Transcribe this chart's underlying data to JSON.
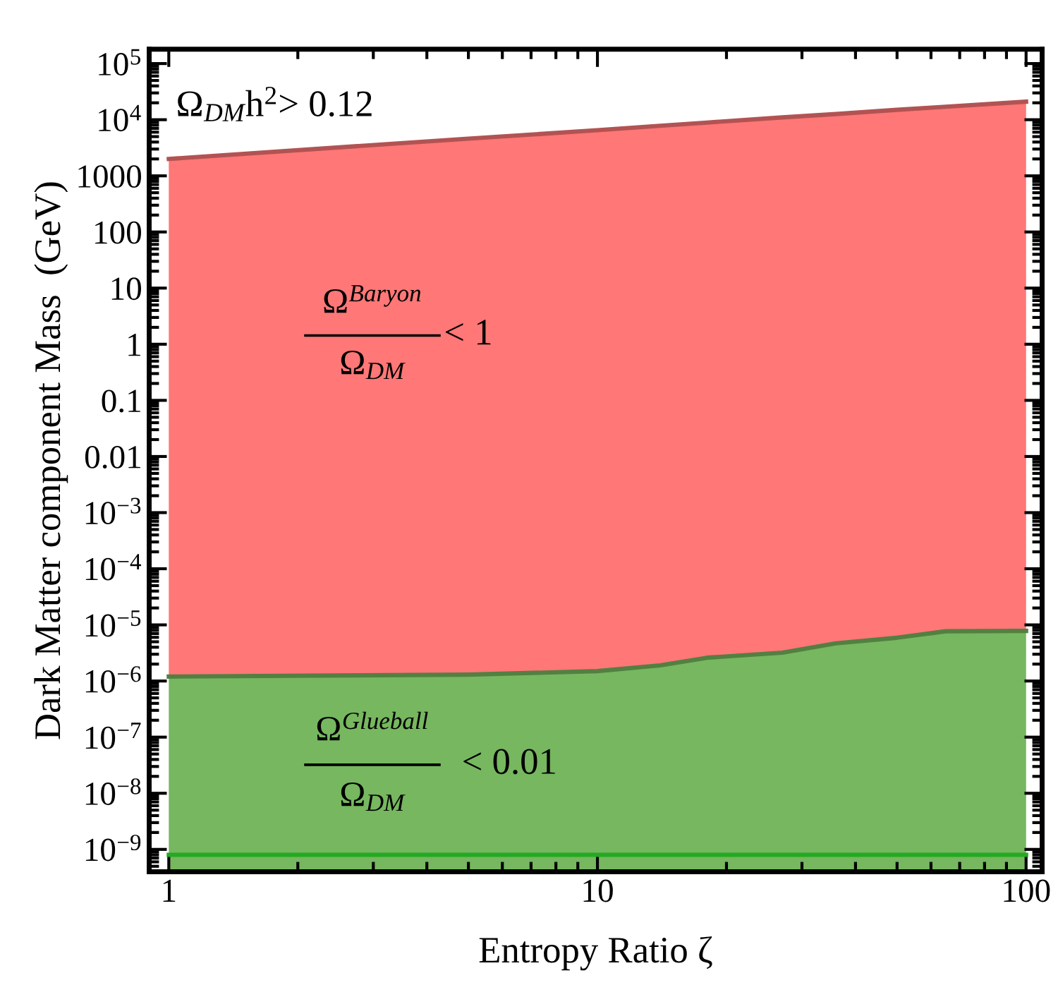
{
  "chart_data": {
    "type": "area",
    "stacked": true,
    "xlabel": "Entropy Ratio ζ",
    "ylabel": "Dark Matter component Mass  (GeV)",
    "log": "xy",
    "grid": false,
    "xlim": [
      0.9,
      109
    ],
    "xticks": [
      1,
      10,
      100
    ],
    "ylim": [
      4e-10,
      180000
    ],
    "yticks": [
      {
        "value": 100000,
        "label": "10$^{5}$"
      },
      {
        "value": 10000,
        "label": "10$^{4}$"
      },
      1000,
      100,
      10,
      1,
      0.1,
      0.01,
      {
        "value": 0.001,
        "label": "10$^{−3}$"
      },
      {
        "value": 0.0001,
        "label": "10$^{−4}$"
      },
      {
        "value": 1e-05,
        "label": "10$^{−5}$"
      },
      {
        "value": 1e-06,
        "label": "10$^{−6}$"
      },
      {
        "value": 1e-07,
        "label": "10$^{−7}$"
      },
      {
        "value": 1e-08,
        "label": "10$^{−8}$"
      },
      {
        "value": 1e-09,
        "label": "10$^{−9}$"
      }
    ],
    "x": [
      1,
      5,
      10,
      14,
      18,
      27,
      36,
      50,
      65,
      100
    ],
    "series": [
      {
        "color": "#76b75f",
        "values": [
          1.2e-06,
          1.3e-06,
          1.5e-06,
          1.9e-06,
          2.6e-06,
          3.2e-06,
          4.7e-06,
          5.9e-06,
          7.7e-06,
          7.8e-06
        ]
      },
      {
        "color": "#ff7777",
        "values": [
          2000,
          4600,
          6500,
          7800,
          8900,
          11000,
          12600,
          15000,
          17000,
          21000
        ]
      },
      {
        "type": "line",
        "color": "#22aa22",
        "x": [
          1,
          100
        ],
        "values": [
          8e-10,
          8e-10
        ]
      }
    ],
    "annotations": [
      "Ω$_{DM}$h$^{2}$> 0.12",
      "Ω$^{Baryon}$",
      "Ω$_{DM}$",
      "< 1",
      "Ω$^{Glueball}$",
      "Ω$_{DM}$",
      "< 0.01"
    ]
  }
}
